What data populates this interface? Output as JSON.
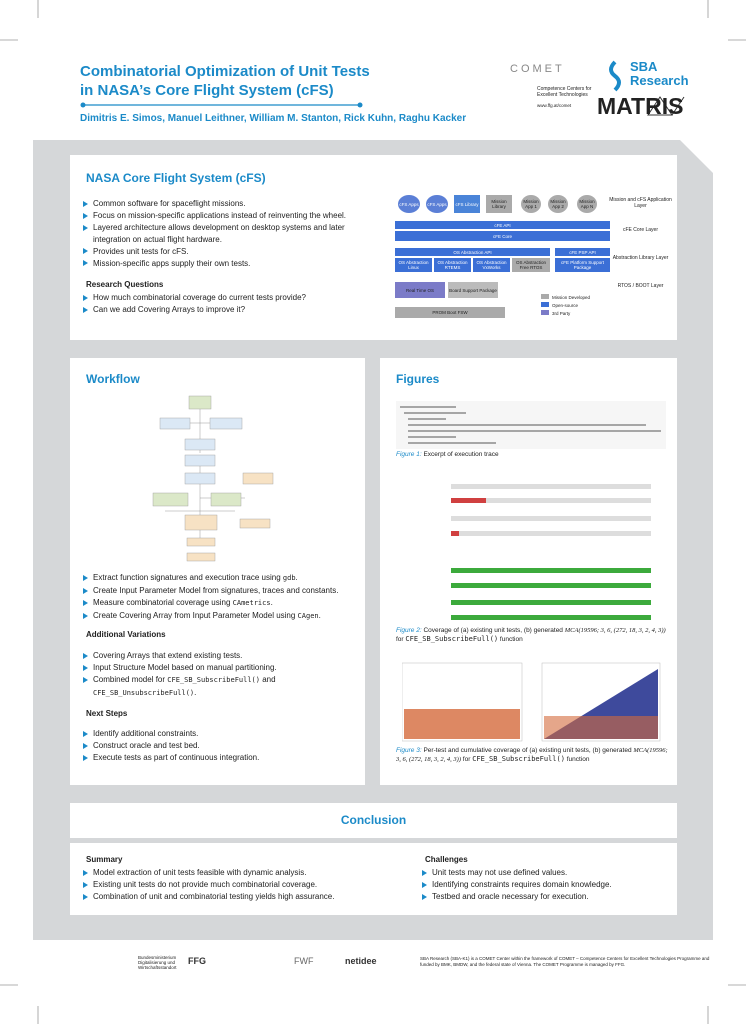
{
  "header": {
    "title": [
      "Combinatorial Optimization of Unit Tests",
      "in NASA’s Core Flight System (cFS)"
    ],
    "authors": "Dimitris E. Simos, Manuel Leithner, William M. Stanton, Rick Kuhn, Raghu Kacker",
    "comet": "COMET",
    "comet_sub": [
      "Competence Centers for",
      "Excellent Technologies"
    ],
    "comet_url": "www.ffg.at/comet",
    "sba": [
      "SBA",
      "Research"
    ],
    "matris": "MATRIS"
  },
  "nasa": {
    "title": "NASA Core Flight System (cFS)",
    "bullets": [
      [
        {
          "t": "Common software for spaceflight missions."
        }
      ],
      [
        {
          "t": "Focus on mission-specific applications instead of reinventing the wheel."
        }
      ],
      [
        {
          "t": "Layered architecture allows development on desktop systems and later integration on actual flight hardware."
        }
      ],
      [
        {
          "t": "Provides unit tests for cFS."
        }
      ],
      [
        {
          "t": "Mission-specific apps supply their own tests."
        }
      ]
    ],
    "rq_title": "Research Questions",
    "rq": [
      [
        {
          "t": "How much combinatorial coverage do current tests provide?"
        }
      ],
      [
        {
          "t": "Can we add Covering Arrays to improve it?"
        }
      ]
    ],
    "diagram": {
      "apps": [
        "cFS Apps",
        "cFS Apps",
        "cFS Library",
        "Mission Library",
        "Mission App 1",
        "Mission App 2",
        "Mission App N"
      ],
      "layers": [
        "Mission and cFS Application Layer",
        "cFE Core Layer",
        "Abstraction Library Layer",
        "RTOS / BOOT Layer"
      ],
      "cfe_api": "cFE API",
      "cfe_core": "cFE Core",
      "osal_api": "OS Abstraction API",
      "psp_api": "cFE PSP API",
      "osal": [
        "OS Abstraction Linux",
        "OS Abstraction RTEMS",
        "OS Abstraction VxWorks",
        "OS Abstraction Free RTOS"
      ],
      "psp": "cFE Platform Support Package",
      "rtos": "Real Time OS",
      "bsp": "Board Support Package",
      "prom": "PROM Boot FSW",
      "legend": [
        "Mission Developed",
        "Open-source",
        "3rd Party"
      ]
    }
  },
  "workflow": {
    "title": "Workflow",
    "bullets": [
      [
        {
          "t": "Extract function signatures and execution trace using "
        },
        {
          "c": "gdb"
        },
        {
          "t": "."
        }
      ],
      [
        {
          "t": "Create Input Parameter Model from signatures, traces and constants."
        }
      ],
      [
        {
          "t": "Measure combinatorial coverage using "
        },
        {
          "c": "CAmetrics"
        },
        {
          "t": "."
        }
      ],
      [
        {
          "t": "Create Covering Array from Input Parameter Model using "
        },
        {
          "c": "CAgen"
        },
        {
          "t": "."
        }
      ]
    ],
    "variations_title": "Additional Variations",
    "variations": [
      [
        {
          "t": "Covering Arrays that extend existing tests."
        }
      ],
      [
        {
          "t": "Input Structure Model based on manual partitioning."
        }
      ],
      [
        {
          "t": "Combined model for "
        },
        {
          "c": "CFE_SB_SubscribeFull()"
        },
        {
          "t": " and "
        },
        {
          "c": "CFE_SB_UnsubscribeFull()"
        },
        {
          "t": "."
        }
      ]
    ],
    "next_title": "Next Steps",
    "next": [
      [
        {
          "t": "Identify additional constraints."
        }
      ],
      [
        {
          "t": "Construct oracle and test bed."
        }
      ],
      [
        {
          "t": "Execute tests as part of continuous integration."
        }
      ]
    ]
  },
  "figures": {
    "title": "Figures",
    "fig1": [
      {
        "f": "Figure 1:"
      },
      {
        "t": " Excerpt of execution trace"
      }
    ],
    "fig2": [
      {
        "f": "Figure 2:"
      },
      {
        "t": " Coverage of (a) existing unit tests, (b) generated "
      },
      {
        "m": "MCA(19596; 3, 6, (272, 18, 3, 2, 4, 3))"
      },
      {
        "t": " for "
      },
      {
        "c": "CFE_SB_SubscribeFull()"
      },
      {
        "t": " function"
      }
    ],
    "fig3": [
      {
        "f": "Figure 3:"
      },
      {
        "t": " Per-test and cumulative coverage of (a) existing unit tests, (b) generated "
      },
      {
        "m": "MCA(19596; 3, 6, (272, 18, 3, 2, 4, 3))"
      },
      {
        "t": " for "
      },
      {
        "c": "CFE_SB_SubscribeFull()"
      },
      {
        "t": " function"
      }
    ]
  },
  "conclusion": {
    "title": "Conclusion",
    "summary_title": "Summary",
    "summary": [
      [
        {
          "t": "Model extraction of unit tests feasible with dynamic analysis."
        }
      ],
      [
        {
          "t": "Existing unit tests do not provide much combinatorial coverage."
        }
      ],
      [
        {
          "t": "Combination of unit and combinatorial testing yields high assurance."
        }
      ]
    ],
    "challenges_title": "Challenges",
    "challenges": [
      [
        {
          "t": "Unit tests may not use defined values."
        }
      ],
      [
        {
          "t": "Identifying constraints requires domain knowledge."
        }
      ],
      [
        {
          "t": "Testbed and oracle necessary for execution."
        }
      ]
    ]
  },
  "footer": {
    "logos": [
      "Bundesministerium Digitalisierung und Wirtschaftsstandort",
      "FFG",
      "FWF",
      "netidee"
    ],
    "text": "SBA Research (SBA-K1) is a COMET Center within the framework of COMET – Competence Centers for Excellent Technologies Programme and funded by BMK, BMDW, and the federal state of Vienna. The COMET Programme is managed by FFG."
  }
}
